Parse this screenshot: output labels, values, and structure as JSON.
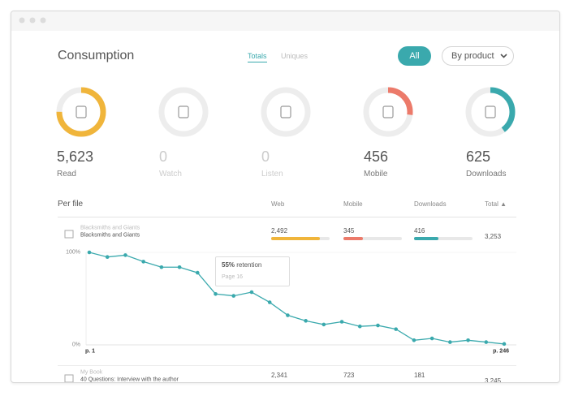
{
  "header": {
    "title": "Consumption",
    "tabs": [
      "Totals",
      "Uniques"
    ],
    "filters": [
      "All",
      "By product"
    ]
  },
  "stats": [
    {
      "value": "5,623",
      "label": "Read",
      "share": 75,
      "color": "#f0b53b"
    },
    {
      "value": "0",
      "label": "Watch",
      "share": 0
    },
    {
      "value": "0",
      "label": "Listen",
      "share": 0
    },
    {
      "value": "456",
      "label": "Mobile",
      "share": 27,
      "color": "#ec7a6a"
    },
    {
      "value": "625",
      "label": "Downloads",
      "share": 40,
      "color": "#3aa9ad"
    }
  ],
  "table": {
    "title": "Per file",
    "columns": [
      "Web",
      "Mobile",
      "Downloads",
      "Total ▲"
    ],
    "rows": [
      {
        "subtitle": "Blacksmiths and Giants",
        "name": "Blacksmiths and Giants",
        "cells": [
          {
            "label": "2,492",
            "share": 83,
            "color": "#f0b53b"
          },
          {
            "label": "345",
            "share": 33,
            "color": "#ec7a6a"
          },
          {
            "label": "416",
            "share": 42,
            "color": "#3aa9ad"
          }
        ],
        "total": "3,253"
      },
      {
        "subtitle": "My Book",
        "name": "40 Questions: Interview with the author",
        "cells": [
          {
            "label": "2,341"
          },
          {
            "label": "723"
          },
          {
            "label": "181"
          }
        ],
        "total": "3,245"
      }
    ]
  },
  "chart_data": {
    "type": "line",
    "values": [
      100,
      95,
      97,
      90,
      84,
      84,
      78,
      55,
      53,
      57,
      46,
      32,
      26,
      22,
      25,
      20,
      21,
      17,
      5,
      7,
      3,
      5,
      3,
      1
    ],
    "color": "#3aa9ad",
    "ylim": [
      0,
      100
    ],
    "yticks": [
      {
        "value": 0,
        "label": "0%"
      },
      {
        "value": 100,
        "label": "100%"
      }
    ],
    "x_labels": [
      "p. 1",
      "p. 246"
    ],
    "tooltip": {
      "value": "55%",
      "text": "retention",
      "page": "Page 16"
    }
  }
}
